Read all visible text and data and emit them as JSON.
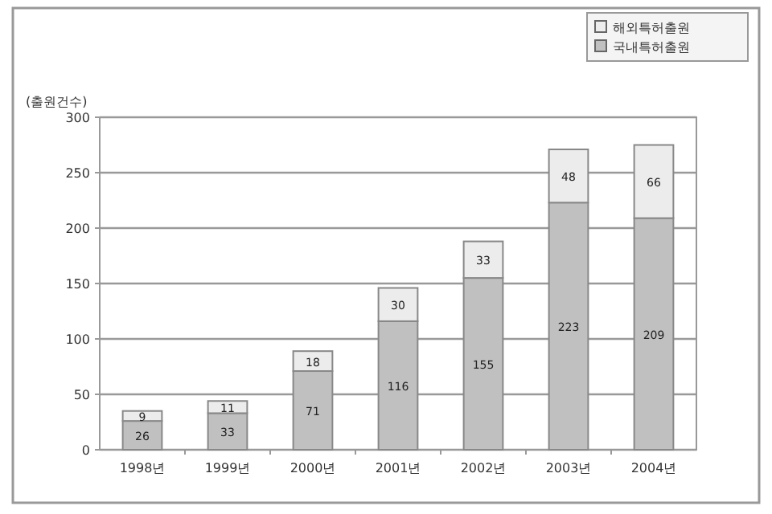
{
  "chart_data": {
    "type": "bar",
    "stacked": true,
    "ylabel": "(출원건수)",
    "categories": [
      "1998년",
      "1999년",
      "2000년",
      "2001년",
      "2002년",
      "2003년",
      "2004년"
    ],
    "series": [
      {
        "name": "국내특허출원",
        "color": "#c0c0c0",
        "values": [
          26,
          33,
          71,
          116,
          155,
          223,
          209
        ]
      },
      {
        "name": "해외특허출원",
        "color": "#ececec",
        "values": [
          9,
          11,
          18,
          30,
          33,
          48,
          66
        ]
      }
    ],
    "ylim": [
      0,
      300
    ],
    "yticks": [
      0,
      50,
      100,
      150,
      200,
      250,
      300
    ],
    "grid": "y",
    "legend": "top right",
    "data_labels": true
  }
}
